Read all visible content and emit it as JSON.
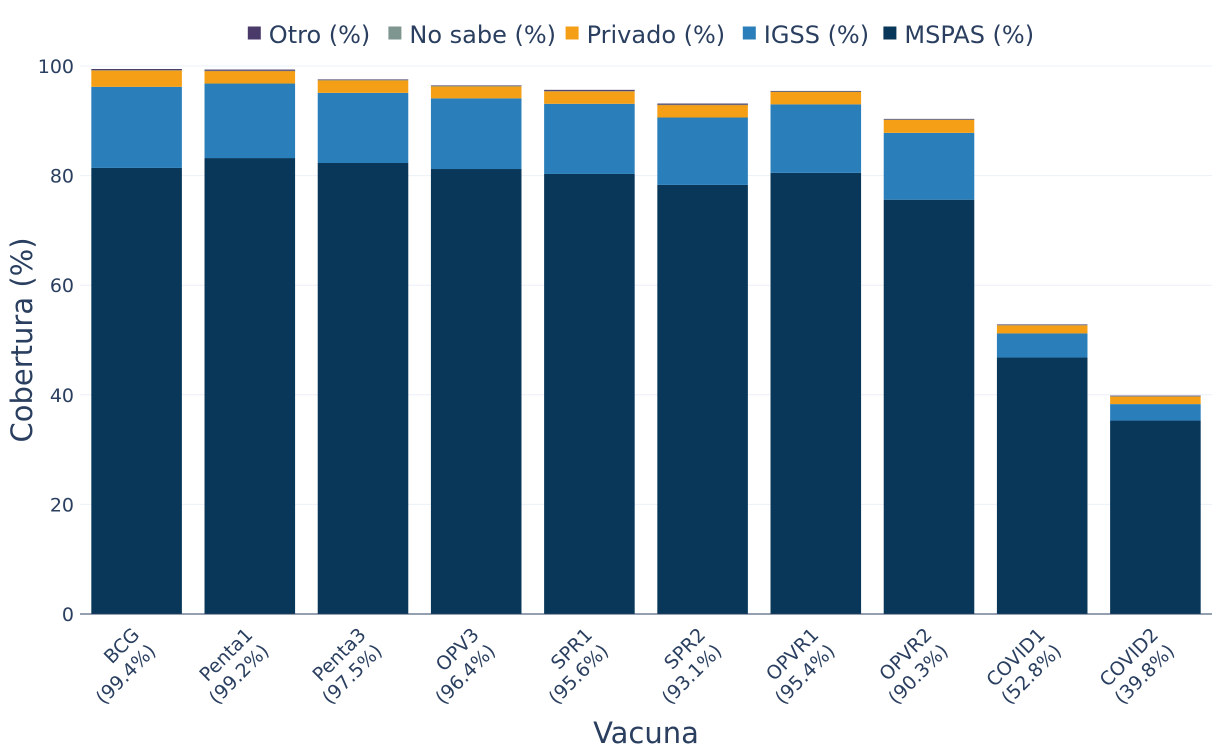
{
  "chart_data": {
    "type": "bar",
    "stacked": true,
    "categories": [
      "BCG",
      "Penta1",
      "Penta3",
      "OPV3",
      "SPR1",
      "SPR2",
      "OPVR1",
      "OPVR2",
      "COVID1",
      "COVID2"
    ],
    "totals_label": [
      "(99.4%)",
      "(99.2%)",
      "(97.5%)",
      "(96.4%)",
      "(95.6%)",
      "(93.1%)",
      "(95.4%)",
      "(90.3%)",
      "(52.8%)",
      "(39.8%)"
    ],
    "series": [
      {
        "name": "MSPAS (%)",
        "color": "#08375a",
        "values": [
          81.4,
          83.2,
          82.3,
          81.2,
          80.3,
          78.3,
          80.5,
          75.6,
          46.8,
          35.3
        ]
      },
      {
        "name": "IGSS (%)",
        "color": "#2a7fba",
        "values": [
          14.8,
          13.6,
          12.8,
          12.9,
          12.8,
          12.3,
          12.5,
          12.2,
          4.4,
          3.0
        ]
      },
      {
        "name": "Privado (%)",
        "color": "#f59f17",
        "values": [
          3.0,
          2.3,
          2.3,
          2.2,
          2.3,
          2.3,
          2.3,
          2.4,
          1.5,
          1.4
        ]
      },
      {
        "name": "No sabe (%)",
        "color": "#7f958f",
        "values": [
          0.05,
          0.05,
          0.05,
          0.05,
          0.05,
          0.05,
          0.05,
          0.05,
          0.05,
          0.05
        ]
      },
      {
        "name": "Otro (%)",
        "color": "#4a3a6a",
        "values": [
          0.2,
          0.2,
          0.1,
          0.1,
          0.2,
          0.2,
          0.1,
          0.1,
          0.1,
          0.1
        ]
      }
    ],
    "legend_order": [
      "Otro (%)",
      "No sabe (%)",
      "Privado (%)",
      "IGSS (%)",
      "MSPAS (%)"
    ],
    "legend_position": "top",
    "xlabel": "Vacuna",
    "ylabel": "Cobertura (%)",
    "ylim": [
      0,
      100
    ],
    "yticks": [
      0,
      20,
      40,
      60,
      80,
      100
    ],
    "grid": true
  }
}
